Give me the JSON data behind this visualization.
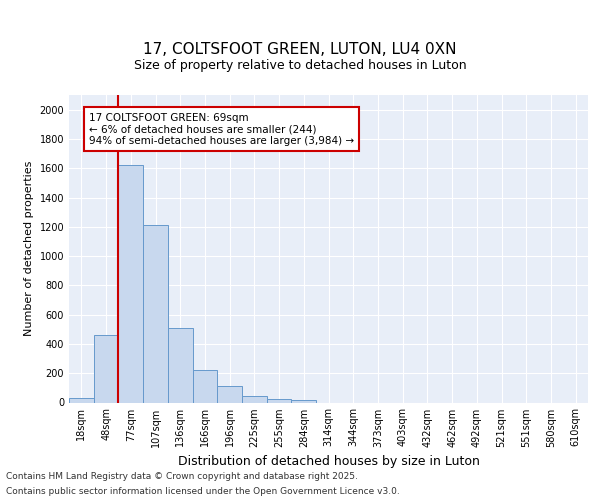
{
  "title1": "17, COLTSFOOT GREEN, LUTON, LU4 0XN",
  "title2": "Size of property relative to detached houses in Luton",
  "xlabel": "Distribution of detached houses by size in Luton",
  "ylabel": "Number of detached properties",
  "categories": [
    "18sqm",
    "48sqm",
    "77sqm",
    "107sqm",
    "136sqm",
    "166sqm",
    "196sqm",
    "225sqm",
    "255sqm",
    "284sqm",
    "314sqm",
    "344sqm",
    "373sqm",
    "403sqm",
    "432sqm",
    "462sqm",
    "492sqm",
    "521sqm",
    "551sqm",
    "580sqm",
    "610sqm"
  ],
  "values": [
    30,
    460,
    1620,
    1210,
    510,
    220,
    110,
    45,
    25,
    15,
    0,
    0,
    0,
    0,
    0,
    0,
    0,
    0,
    0,
    0,
    0
  ],
  "bar_color": "#c8d8ee",
  "bar_edge_color": "#6699cc",
  "ylim": [
    0,
    2100
  ],
  "yticks": [
    0,
    200,
    400,
    600,
    800,
    1000,
    1200,
    1400,
    1600,
    1800,
    2000
  ],
  "vline_x": 2.0,
  "vline_color": "#cc0000",
  "annotation_text": "17 COLTSFOOT GREEN: 69sqm\n← 6% of detached houses are smaller (244)\n94% of semi-detached houses are larger (3,984) →",
  "annotation_box_color": "#ffffff",
  "annotation_box_edge": "#cc0000",
  "footer1": "Contains HM Land Registry data © Crown copyright and database right 2025.",
  "footer2": "Contains public sector information licensed under the Open Government Licence v3.0.",
  "bg_color": "#ffffff",
  "plot_bg_color": "#e8eef8",
  "grid_color": "#ffffff",
  "title_fontsize": 11,
  "subtitle_fontsize": 9,
  "ylabel_fontsize": 8,
  "xlabel_fontsize": 9,
  "tick_fontsize": 7,
  "annot_fontsize": 7.5,
  "footer_fontsize": 6.5
}
